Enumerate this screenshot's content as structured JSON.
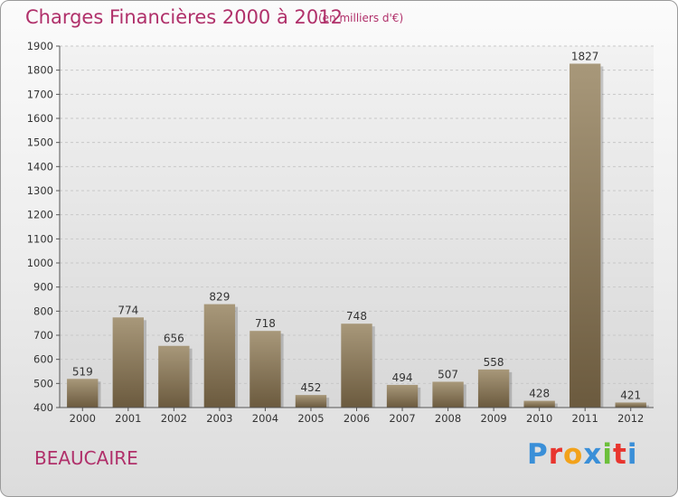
{
  "header": {
    "title": "Charges Financières 2000 à 2012",
    "subtitle": "(en milliers d'€)"
  },
  "footer": {
    "commune": "BEAUCAIRE",
    "logo_text": "Proxiti",
    "logo_colors": [
      "#3a8fd8",
      "#e8352e",
      "#f2a21a",
      "#3a8fd8",
      "#6cbf3a",
      "#e8352e",
      "#3a8fd8"
    ]
  },
  "colors": {
    "title": "#b0306a",
    "bar_light": "#a8987a",
    "bar_dark": "#6b5a3e",
    "grid": "#c8c8c8",
    "axis": "#555555"
  },
  "chart_data": {
    "type": "bar",
    "title": "Charges Financières 2000 à 2012",
    "subtitle": "(en milliers d'€)",
    "categories": [
      "2000",
      "2001",
      "2002",
      "2003",
      "2004",
      "2005",
      "2006",
      "2007",
      "2008",
      "2009",
      "2010",
      "2011",
      "2012"
    ],
    "values": [
      519,
      774,
      656,
      829,
      718,
      452,
      748,
      494,
      507,
      558,
      428,
      1827,
      421
    ],
    "xlabel": "",
    "ylabel": "",
    "ylim": [
      400,
      1900
    ],
    "yticks": [
      400,
      500,
      600,
      700,
      800,
      900,
      1000,
      1100,
      1200,
      1300,
      1400,
      1500,
      1600,
      1700,
      1800,
      1900
    ],
    "grid": true,
    "legend": "none"
  }
}
